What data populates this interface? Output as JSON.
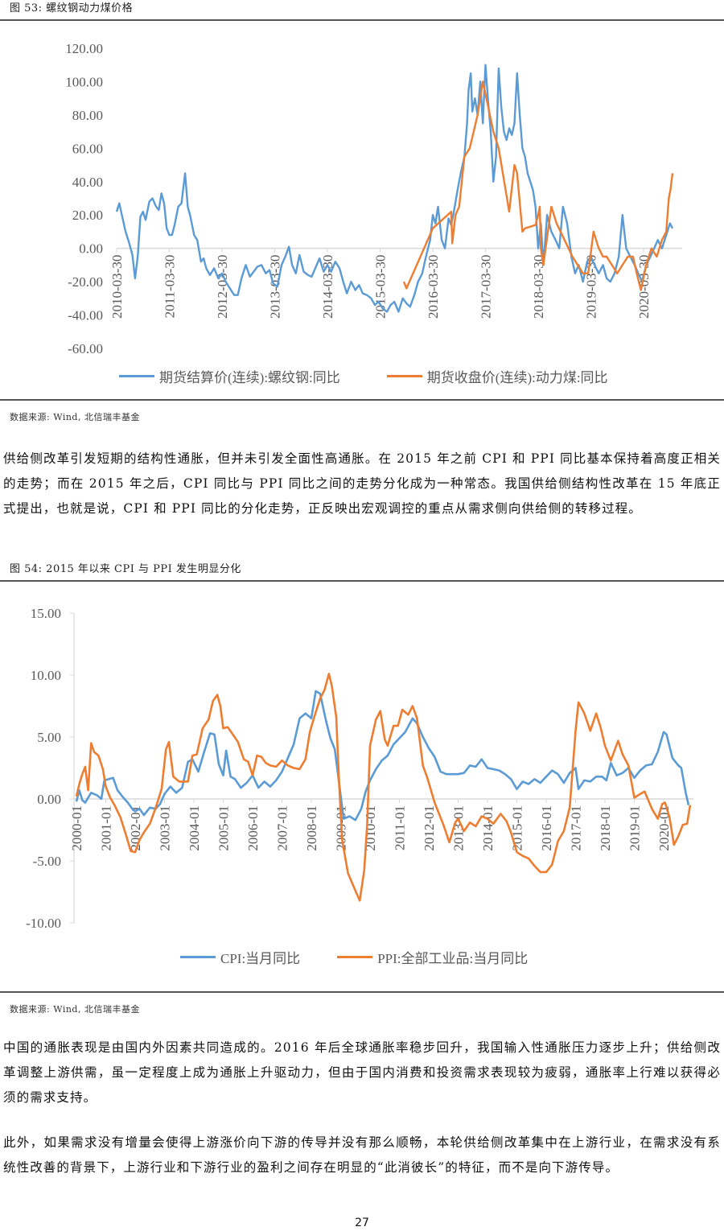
{
  "figure53": {
    "title": "图 53: 螺纹钢动力煤价格",
    "source": "数据来源: Wind, 北信瑞丰基金"
  },
  "paragraph1": "供给侧改革引发短期的结构性通胀，但并未引发全面性高通胀。在 2015 年之前 CPI 和 PPI 同比基本保持着高度正相关的走势；而在 2015 年之后，CPI 同比与 PPI 同比之间的走势分化成为一种常态。我国供给侧结构性改革在 15 年底正式提出，也就是说，CPI 和 PPI 同比的分化走势，正反映出宏观调控的重点从需求侧向供给侧的转移过程。",
  "figure54": {
    "title": "图 54: 2015 年以来 CPI 与 PPI 发生明显分化",
    "source": "数据来源: Wind, 北信瑞丰基金"
  },
  "paragraph2": "中国的通胀表现是由国内外因素共同造成的。2016 年后全球通胀率稳步回升，我国输入性通胀压力逐步上升；供给侧改革调整上游供需，虽一定程度上成为通胀上升驱动力，但由于国内消费和投资需求表现较为疲弱，通胀率上行难以获得必须的需求支持。",
  "paragraph3": "此外，如果需求没有增量会使得上游涨价向下游的传导并没有那么顺畅，本轮供给侧改革集中在上游行业，在需求没有系统性改善的背景下，上游行业和下游行业的盈利之间存在明显的“此消彼长”的特征，而不是向下游传导。",
  "page_number": "27",
  "chart_data": [
    {
      "type": "line",
      "title": "螺纹钢动力煤价格",
      "xlabel": "",
      "ylabel": "",
      "ylim": [
        -60,
        120
      ],
      "yticks": [
        "120.00",
        "100.00",
        "80.00",
        "60.00",
        "40.00",
        "20.00",
        "0.00",
        "-20.00",
        "-40.00",
        "-60.00"
      ],
      "categories": [
        "2010-03-30",
        "2011-03-30",
        "2012-03-30",
        "2013-03-30",
        "2014-03-30",
        "2015-03-30",
        "2016-03-30",
        "2017-03-30",
        "2018-03-30",
        "2019-03-30",
        "2020-03-30"
      ],
      "grid": false,
      "legend_position": "bottom",
      "colors": {
        "rebar": "#5B9BD5",
        "coal": "#ED7D31"
      },
      "series": [
        {
          "name": "期货结算价(连续):螺纹钢:同比",
          "x": [
            2010.25,
            2010.3,
            2010.35,
            2010.42,
            2010.48,
            2010.55,
            2010.6,
            2010.65,
            2010.7,
            2010.75,
            2010.8,
            2010.87,
            2010.93,
            2011.0,
            2011.05,
            2011.1,
            2011.15,
            2011.2,
            2011.25,
            2011.3,
            2011.35,
            2011.42,
            2011.48,
            2011.55,
            2011.6,
            2011.65,
            2011.72,
            2011.78,
            2011.85,
            2011.9,
            2011.95,
            2012.02,
            2012.1,
            2012.18,
            2012.25,
            2012.32,
            2012.4,
            2012.48,
            2012.55,
            2012.62,
            2012.7,
            2012.78,
            2012.85,
            2012.92,
            2013.0,
            2013.08,
            2013.15,
            2013.22,
            2013.3,
            2013.38,
            2013.45,
            2013.52,
            2013.58,
            2013.65,
            2013.72,
            2013.8,
            2013.88,
            2013.95,
            2014.02,
            2014.1,
            2014.18,
            2014.25,
            2014.32,
            2014.4,
            2014.48,
            2014.55,
            2014.62,
            2014.7,
            2014.78,
            2014.85,
            2014.92,
            2015.0,
            2015.08,
            2015.15,
            2015.22,
            2015.3,
            2015.38,
            2015.45,
            2015.52,
            2015.6,
            2015.68,
            2015.75,
            2015.82,
            2015.9,
            2015.97,
            2016.05,
            2016.12,
            2016.2,
            2016.25,
            2016.3,
            2016.35,
            2016.42,
            2016.48,
            2016.55,
            2016.6,
            2016.65,
            2016.72,
            2016.78,
            2016.85,
            2016.9,
            2016.93,
            2016.97,
            2017.0,
            2017.05,
            2017.1,
            2017.15,
            2017.2,
            2017.25,
            2017.3,
            2017.35,
            2017.4,
            2017.45,
            2017.5,
            2017.55,
            2017.6,
            2017.65,
            2017.7,
            2017.75,
            2017.8,
            2017.85,
            2017.9,
            2017.95,
            2018.0,
            2018.05,
            2018.1,
            2018.15,
            2018.2,
            2018.25,
            2018.3,
            2018.35,
            2018.42,
            2018.5,
            2018.58,
            2018.65,
            2018.72,
            2018.8,
            2018.88,
            2018.95,
            2019.02,
            2019.1,
            2019.18,
            2019.25,
            2019.32,
            2019.4,
            2019.48,
            2019.55,
            2019.62,
            2019.7,
            2019.78,
            2019.85,
            2019.92,
            2020.0,
            2020.08,
            2020.15,
            2020.22,
            2020.3,
            2020.38,
            2020.45,
            2020.52,
            2020.6,
            2020.68,
            2020.75,
            2020.8
          ],
          "values": [
            22,
            27,
            20,
            10,
            4,
            -4,
            -18,
            -5,
            19,
            22,
            17,
            28,
            30,
            25,
            23,
            33,
            27,
            12,
            8,
            8,
            14,
            25,
            27,
            45,
            25,
            19,
            8,
            5,
            -8,
            -6,
            -12,
            -16,
            -12,
            -18,
            -15,
            -20,
            -24,
            -28,
            -28,
            -18,
            -10,
            -17,
            -14,
            -11,
            -10,
            -15,
            -13,
            -21,
            -23,
            -10,
            -5,
            1,
            -10,
            -15,
            -4,
            -14,
            -16,
            -17,
            -12,
            -6,
            -14,
            -10,
            -14,
            -8,
            -12,
            -20,
            -27,
            -20,
            -25,
            -22,
            -27,
            -28,
            -30,
            -34,
            -32,
            -36,
            -38,
            -34,
            -32,
            -38,
            -30,
            -33,
            -35,
            -28,
            -20,
            -15,
            -5,
            5,
            20,
            15,
            25,
            5,
            0,
            18,
            14,
            22,
            35,
            45,
            55,
            75,
            95,
            105,
            82,
            90,
            80,
            100,
            75,
            110,
            88,
            70,
            40,
            55,
            108,
            85,
            70,
            65,
            72,
            68,
            75,
            105,
            80,
            60,
            55,
            45,
            40,
            35,
            25,
            0,
            15,
            -10,
            20,
            10,
            5,
            0,
            25,
            15,
            -5,
            -15,
            -10,
            -20,
            -8,
            -5,
            -10,
            -15,
            -10,
            -18,
            -20,
            -15,
            -5,
            20,
            0,
            -5,
            -10,
            -15,
            -20,
            -10,
            -5,
            0,
            5,
            0,
            8,
            15,
            12
          ]
        },
        {
          "name": "期货收盘价(连续):动力煤:同比",
          "x": [
            2015.7,
            2015.75,
            2016.25,
            2016.6,
            2016.62,
            2016.68,
            2016.75,
            2016.85,
            2016.95,
            2017.1,
            2017.2,
            2017.3,
            2017.4,
            2017.5,
            2017.7,
            2017.8,
            2017.85,
            2017.95,
            2018.0,
            2018.2,
            2018.25,
            2018.28,
            2018.3,
            2018.35,
            2018.4,
            2018.5,
            2018.6,
            2018.75,
            2018.9,
            2019.0,
            2019.1,
            2019.2,
            2019.3,
            2019.4,
            2019.48,
            2019.55,
            2019.65,
            2019.75,
            2019.85,
            2019.95,
            2020.05,
            2020.12,
            2020.2,
            2020.3,
            2020.4,
            2020.5,
            2020.6,
            2020.68,
            2020.73,
            2020.76,
            2020.8
          ],
          "values": [
            -20,
            -24,
            12,
            22,
            3,
            20,
            25,
            55,
            60,
            80,
            100,
            85,
            70,
            60,
            22,
            50,
            45,
            10,
            12,
            14,
            20,
            25,
            0,
            -10,
            2,
            25,
            15,
            5,
            -5,
            -10,
            -15,
            -15,
            10,
            0,
            -5,
            -5,
            -10,
            -15,
            -10,
            -5,
            -5,
            -15,
            -25,
            -10,
            0,
            -5,
            5,
            10,
            30,
            35,
            45
          ]
        }
      ]
    },
    {
      "type": "line",
      "title": "2015 年以来 CPI 与 PPI 发生明显分化",
      "xlabel": "",
      "ylabel": "",
      "ylim": [
        -10,
        15
      ],
      "yticks": [
        "15.00",
        "10.00",
        "5.00",
        "0.00",
        "-5.00",
        "-10.00"
      ],
      "categories": [
        "2000-01",
        "2001-01",
        "2002-01",
        "2003-01",
        "2004-01",
        "2005-01",
        "2006-01",
        "2007-01",
        "2008-01",
        "2009-01",
        "2010-01",
        "2011-01",
        "2012-01",
        "2013-01",
        "2014-01",
        "2015-01",
        "2016-01",
        "2017-01",
        "2018-01",
        "2019-01",
        "2020-01"
      ],
      "grid": false,
      "legend_position": "bottom",
      "colors": {
        "cpi": "#5B9BD5",
        "ppi": "#ED7D31"
      },
      "series": [
        {
          "name": "CPI:当月同比",
          "x": [
            2000.0,
            2000.1,
            2000.2,
            2000.3,
            2000.5,
            2000.7,
            2000.85,
            2000.95,
            2001.1,
            2001.25,
            2001.4,
            2001.6,
            2001.75,
            2001.9,
            2002.0,
            2002.15,
            2002.3,
            2002.5,
            2002.7,
            2002.85,
            2003.0,
            2003.2,
            2003.4,
            2003.6,
            2003.8,
            2003.95,
            2004.15,
            2004.35,
            2004.55,
            2004.7,
            2004.85,
            2005.0,
            2005.1,
            2005.25,
            2005.4,
            2005.6,
            2005.8,
            2006.0,
            2006.2,
            2006.4,
            2006.6,
            2006.8,
            2007.0,
            2007.2,
            2007.4,
            2007.6,
            2007.8,
            2008.0,
            2008.15,
            2008.3,
            2008.5,
            2008.65,
            2008.8,
            2008.95,
            2009.1,
            2009.3,
            2009.5,
            2009.7,
            2009.85,
            2010.0,
            2010.2,
            2010.4,
            2010.6,
            2010.8,
            2011.0,
            2011.2,
            2011.45,
            2011.6,
            2011.8,
            2012.0,
            2012.2,
            2012.4,
            2012.6,
            2012.8,
            2013.0,
            2013.2,
            2013.4,
            2013.6,
            2013.8,
            2014.0,
            2014.2,
            2014.4,
            2014.6,
            2014.8,
            2015.0,
            2015.2,
            2015.4,
            2015.6,
            2015.8,
            2016.0,
            2016.2,
            2016.4,
            2016.6,
            2016.8,
            2017.0,
            2017.1,
            2017.3,
            2017.5,
            2017.7,
            2017.9,
            2018.05,
            2018.2,
            2018.4,
            2018.6,
            2018.8,
            2019.0,
            2019.2,
            2019.4,
            2019.6,
            2019.8,
            2020.0,
            2020.1,
            2020.3,
            2020.5,
            2020.6,
            2020.75,
            2020.85
          ],
          "values": [
            -0.2,
            0.7,
            -0.1,
            -0.3,
            0.5,
            0.3,
            0.0,
            1.5,
            1.6,
            1.7,
            0.7,
            0.1,
            -0.3,
            -0.8,
            -1.0,
            -0.8,
            -1.3,
            -0.7,
            -0.8,
            -0.4,
            0.4,
            1.0,
            0.5,
            0.9,
            3.0,
            3.2,
            2.2,
            3.8,
            5.3,
            5.2,
            2.8,
            1.9,
            3.9,
            1.8,
            1.6,
            0.9,
            1.3,
            1.9,
            0.9,
            1.4,
            1.0,
            1.5,
            2.2,
            3.3,
            4.4,
            6.5,
            6.9,
            6.5,
            8.7,
            8.5,
            6.3,
            4.9,
            4.0,
            1.2,
            -1.6,
            -1.4,
            -1.7,
            -0.8,
            0.6,
            1.5,
            2.4,
            3.1,
            3.5,
            4.4,
            4.9,
            5.4,
            6.5,
            6.1,
            5.0,
            4.1,
            3.4,
            2.2,
            2.0,
            2.0,
            2.0,
            2.1,
            2.7,
            2.6,
            3.2,
            2.5,
            2.4,
            2.3,
            2.0,
            1.6,
            0.8,
            1.4,
            1.2,
            1.6,
            1.3,
            1.8,
            2.3,
            2.0,
            1.3,
            2.1,
            2.5,
            0.8,
            1.5,
            1.4,
            1.8,
            1.8,
            1.5,
            2.9,
            1.9,
            2.1,
            2.5,
            1.7,
            2.3,
            2.7,
            2.8,
            3.8,
            5.4,
            5.2,
            3.3,
            2.7,
            2.5,
            0.5,
            -0.5
          ]
        },
        {
          "name": "PPI:全部工业品:当月同比",
          "x": [
            2000.0,
            2000.1,
            2000.2,
            2000.3,
            2000.4,
            2000.5,
            2000.6,
            2000.75,
            2000.9,
            2001.0,
            2001.15,
            2001.3,
            2001.5,
            2001.7,
            2001.85,
            2002.0,
            2002.15,
            2002.3,
            2002.5,
            2002.7,
            2002.9,
            2003.05,
            2003.15,
            2003.3,
            2003.5,
            2003.8,
            2003.95,
            2004.1,
            2004.3,
            2004.5,
            2004.65,
            2004.8,
            2004.9,
            2005.0,
            2005.15,
            2005.3,
            2005.5,
            2005.7,
            2005.85,
            2006.0,
            2006.15,
            2006.3,
            2006.45,
            2006.6,
            2006.8,
            2007.0,
            2007.2,
            2007.4,
            2007.6,
            2007.8,
            2007.95,
            2008.1,
            2008.3,
            2008.45,
            2008.6,
            2008.7,
            2008.85,
            2008.95,
            2009.05,
            2009.25,
            2009.5,
            2009.65,
            2009.8,
            2009.9,
            2010.0,
            2010.2,
            2010.35,
            2010.5,
            2010.6,
            2010.8,
            2010.95,
            2011.1,
            2011.3,
            2011.45,
            2011.6,
            2011.8,
            2011.95,
            2012.2,
            2012.5,
            2012.7,
            2012.9,
            2013.0,
            2013.2,
            2013.4,
            2013.6,
            2013.8,
            2014.0,
            2014.2,
            2014.45,
            2014.65,
            2014.8,
            2015.0,
            2015.2,
            2015.4,
            2015.6,
            2015.8,
            2016.0,
            2016.2,
            2016.4,
            2016.6,
            2016.8,
            2017.0,
            2017.1,
            2017.3,
            2017.5,
            2017.7,
            2017.85,
            2018.0,
            2018.2,
            2018.45,
            2018.6,
            2018.8,
            2019.0,
            2019.2,
            2019.35,
            2019.6,
            2019.8,
            2019.95,
            2020.05,
            2020.2,
            2020.35,
            2020.5,
            2020.65,
            2020.8,
            2020.9
          ],
          "values": [
            0.2,
            1.2,
            2.0,
            2.6,
            0.7,
            4.5,
            3.8,
            3.5,
            2.4,
            1.0,
            0.1,
            -0.5,
            -1.5,
            -3.0,
            -4.2,
            -4.3,
            -3.3,
            -2.7,
            -2.0,
            -0.7,
            0.8,
            4.0,
            4.6,
            1.8,
            1.4,
            1.4,
            3.5,
            3.6,
            5.7,
            6.4,
            7.9,
            8.4,
            7.5,
            5.7,
            5.8,
            5.3,
            4.6,
            3.2,
            3.0,
            1.9,
            3.5,
            3.4,
            2.9,
            2.7,
            2.6,
            3.1,
            2.7,
            2.5,
            2.4,
            3.2,
            5.4,
            6.6,
            8.1,
            8.8,
            10.1,
            9.1,
            6.6,
            1.1,
            -3.3,
            -6.0,
            -7.4,
            -8.2,
            -5.8,
            -2.1,
            4.3,
            6.4,
            7.1,
            4.8,
            4.3,
            5.9,
            5.9,
            7.2,
            6.8,
            7.5,
            6.5,
            2.7,
            1.7,
            -0.3,
            -2.1,
            -3.5,
            -1.9,
            -1.6,
            -2.6,
            -1.9,
            -2.2,
            -1.4,
            -1.6,
            -2.0,
            -1.2,
            -1.8,
            -2.7,
            -4.3,
            -4.6,
            -4.8,
            -5.4,
            -5.9,
            -5.9,
            -5.3,
            -3.4,
            -2.6,
            -0.7,
            5.5,
            7.8,
            6.9,
            5.5,
            6.9,
            5.8,
            4.3,
            3.1,
            4.7,
            3.6,
            2.7,
            0.1,
            0.4,
            0.6,
            -0.8,
            -1.6,
            -0.4,
            -0.3,
            -1.5,
            -3.7,
            -3.0,
            -2.1,
            -2.0,
            -0.5
          ]
        }
      ]
    }
  ]
}
